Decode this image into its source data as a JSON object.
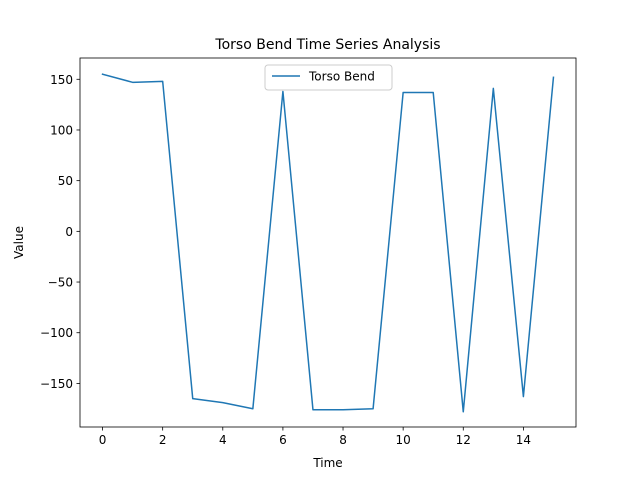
{
  "chart_data": {
    "type": "line",
    "title": "Torso Bend Time Series Analysis",
    "xlabel": "Time",
    "ylabel": "Value",
    "xlim": [
      -0.75,
      15.75
    ],
    "ylim": [
      -193,
      171
    ],
    "x_ticks": [
      0,
      2,
      4,
      6,
      8,
      10,
      12,
      14
    ],
    "y_ticks": [
      -150,
      -100,
      -50,
      0,
      50,
      100,
      150
    ],
    "grid": false,
    "legend": {
      "position": "top-center"
    },
    "series": [
      {
        "name": "Torso Bend",
        "color": "#1f77b4",
        "x": [
          0,
          1,
          2,
          3,
          4,
          5,
          6,
          7,
          8,
          9,
          10,
          11,
          12,
          13,
          14,
          15
        ],
        "values": [
          155,
          147,
          148,
          -165,
          -169,
          -175,
          138,
          -176,
          -176,
          -175,
          137,
          137,
          -178,
          141,
          -163,
          152
        ]
      }
    ]
  }
}
